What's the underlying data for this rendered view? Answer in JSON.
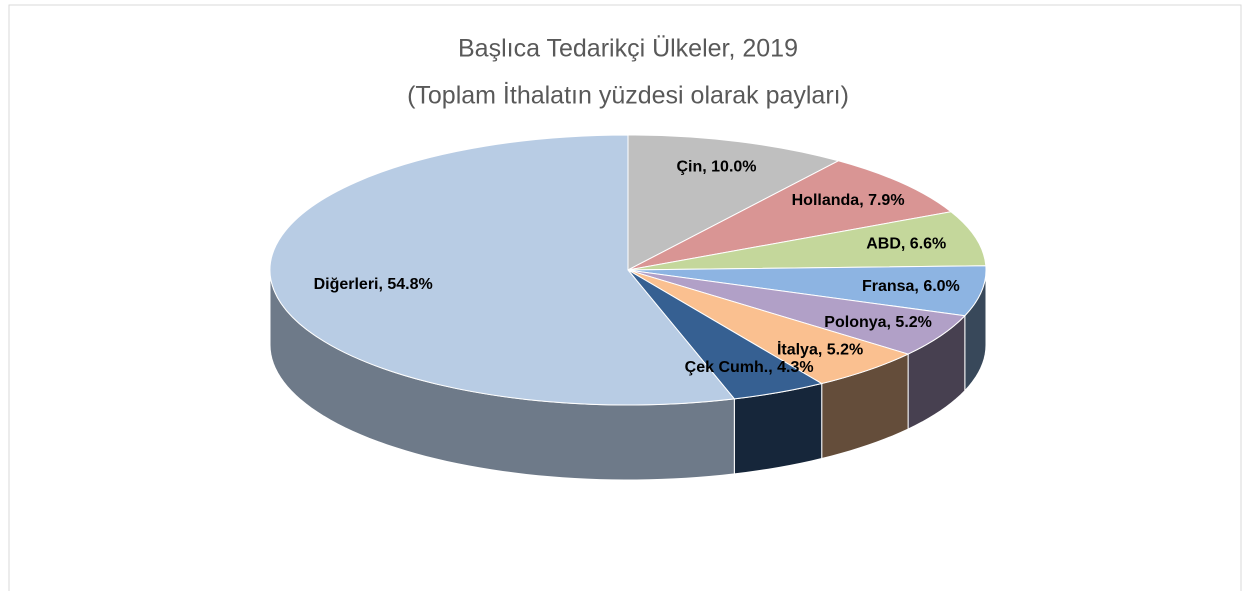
{
  "chart_data": {
    "type": "pie3d",
    "title": "Başlıca Tedarikçi Ülkeler, 2019",
    "subtitle": "(Toplam İthalatın yüzdesi olarak payları)",
    "values": [
      10.0,
      7.9,
      6.6,
      6.0,
      5.2,
      5.2,
      4.3,
      54.8
    ],
    "value_labels": [
      "Çin, 10.0%",
      "Hollanda, 7.9%",
      "ABD, 6.6%",
      "Fransa, 6.0%",
      "Polonya, 5.2%",
      "İtalya, 5.2%",
      "Çek Cumh., 4.3%",
      "Diğerleri, 54.8%"
    ],
    "colors": [
      "#bfbfbf",
      "#d99594",
      "#c4d79b",
      "#8db4e2",
      "#b1a0c7",
      "#fac090",
      "#366092",
      "#b8cce4"
    ]
  }
}
